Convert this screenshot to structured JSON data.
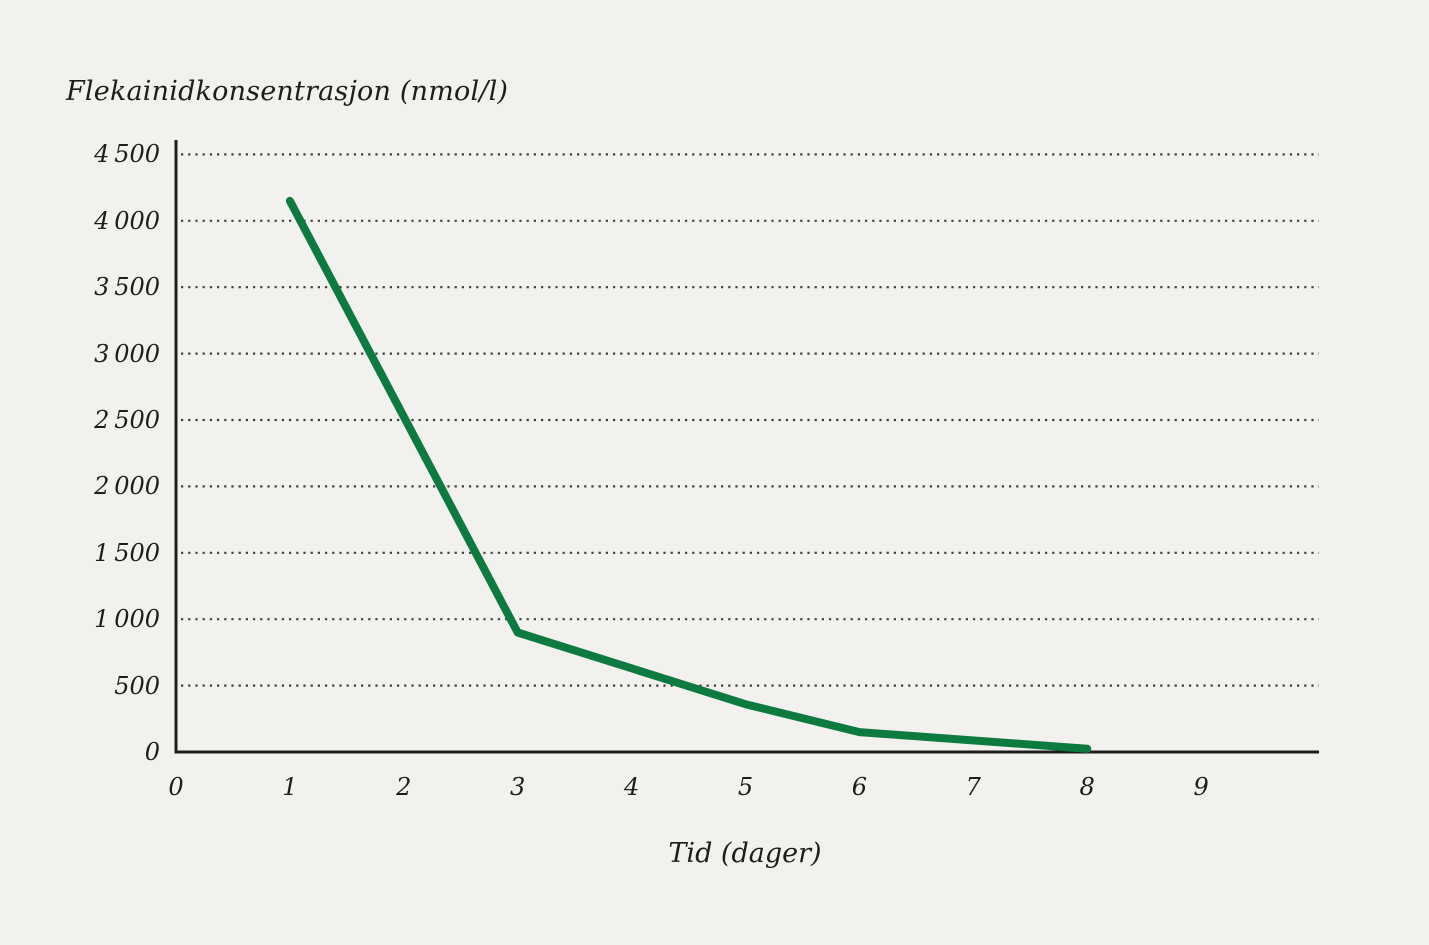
{
  "colors": {
    "background": "#f2f1ed",
    "line": "#0d7a3f",
    "axis": "#1d1d1b",
    "grid": "#3f3d39",
    "text": "#1d1d1b"
  },
  "axes": {
    "y": {
      "title": "Flekainidkonsentrasjon (nmol/l)",
      "ticks": [
        {
          "v": 0,
          "label": "0"
        },
        {
          "v": 500,
          "label": "500"
        },
        {
          "v": 1000,
          "label": "1 000"
        },
        {
          "v": 1500,
          "label": "1 500"
        },
        {
          "v": 2000,
          "label": "2 000"
        },
        {
          "v": 2500,
          "label": "2 500"
        },
        {
          "v": 3000,
          "label": "3 000"
        },
        {
          "v": 3500,
          "label": "3 500"
        },
        {
          "v": 4000,
          "label": "4 000"
        },
        {
          "v": 4500,
          "label": "4 500"
        }
      ]
    },
    "x": {
      "title": "Tid (dager)",
      "ticks": [
        {
          "v": 0,
          "label": "0"
        },
        {
          "v": 1,
          "label": "1"
        },
        {
          "v": 2,
          "label": "2"
        },
        {
          "v": 3,
          "label": "3"
        },
        {
          "v": 4,
          "label": "4"
        },
        {
          "v": 5,
          "label": "5"
        },
        {
          "v": 6,
          "label": "6"
        },
        {
          "v": 7,
          "label": "7"
        },
        {
          "v": 8,
          "label": "8"
        },
        {
          "v": 9,
          "label": "9"
        }
      ]
    }
  },
  "chart_data": {
    "type": "line",
    "title": "",
    "xlabel": "Tid (dager)",
    "ylabel": "Flekainidkonsentrasjon (nmol/l)",
    "xlim": [
      0,
      10
    ],
    "ylim": [
      0,
      4500
    ],
    "x_ticks": [
      0,
      1,
      2,
      3,
      4,
      5,
      6,
      7,
      8,
      9
    ],
    "y_ticks": [
      0,
      500,
      1000,
      1500,
      2000,
      2500,
      3000,
      3500,
      4000,
      4500
    ],
    "grid": "horizontal-dotted",
    "legend": "none",
    "series": [
      {
        "name": "Flekainidkonsentrasjon",
        "color": "#0d7a3f",
        "x": [
          1,
          3,
          5,
          6,
          8
        ],
        "y": [
          4150,
          900,
          360,
          150,
          25
        ]
      }
    ]
  }
}
